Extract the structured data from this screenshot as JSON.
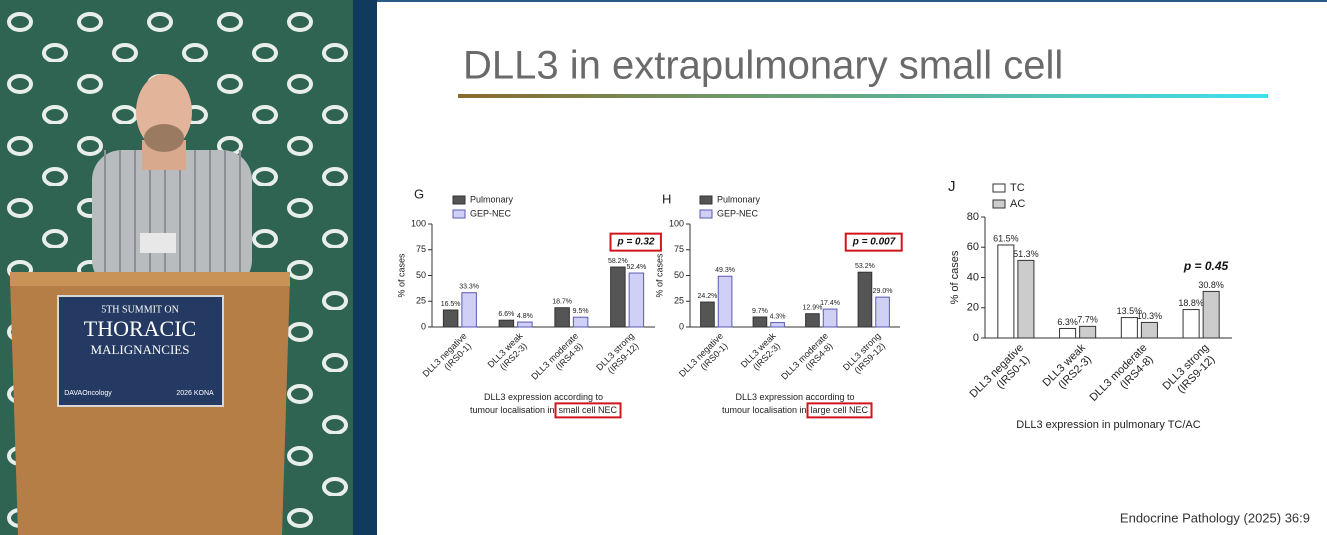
{
  "slide": {
    "title": "DLL3 in extrapulmonary small cell",
    "citation": "Endocrine Pathology (2025) 36:9"
  },
  "podium": {
    "line1": "5TH SUMMIT ON",
    "line2": "THORACIC",
    "line3": "MALIGNANCIES",
    "logo": "DAVAOncology",
    "badge": "2026 KONA"
  },
  "chart_data": [
    {
      "type": "bar",
      "panel": "G",
      "y_label": "% of cases",
      "categories": [
        [
          "DLL3 negative",
          "(IRS0-1)"
        ],
        [
          "DLL3 weak",
          "(IRS2-3)"
        ],
        [
          "DLL3 moderate",
          "(IRS4-8)"
        ],
        [
          "DLL3 strong",
          "(IRS9-12)"
        ]
      ],
      "series": [
        {
          "name": "Pulmonary",
          "color": "#555555",
          "stroke": "#333333",
          "values": [
            16.5,
            6.6,
            18.7,
            58.2
          ],
          "value_labels": [
            "16.5%",
            "6.6%",
            "18.7%",
            "58.2%"
          ]
        },
        {
          "name": "GEP-NEC",
          "color": "#d0d0f7",
          "stroke": "#5a5ab0",
          "values": [
            33.3,
            4.8,
            9.5,
            52.4
          ],
          "value_labels": [
            "33.3%",
            "4.8%",
            "9.5%",
            "52.4%"
          ]
        }
      ],
      "ylim": [
        0,
        100
      ],
      "yticks": [
        0,
        25,
        50,
        75,
        100
      ],
      "x_label": [
        "DLL3 expression according to",
        "tumour localisation in"
      ],
      "x_label_highlight": "small cell NEC",
      "annotation": "p = 0.32",
      "annotation_boxed": true
    },
    {
      "type": "bar",
      "panel": "H",
      "y_label": "% of cases",
      "categories": [
        [
          "DLL3 negative",
          "(IRS0-1)"
        ],
        [
          "DLL3 weak",
          "(IRS2-3)"
        ],
        [
          "DLL3 moderate",
          "(IRS4-8)"
        ],
        [
          "DLL3 strong",
          "(IRS9-12)"
        ]
      ],
      "series": [
        {
          "name": "Pulmonary",
          "color": "#555555",
          "stroke": "#333333",
          "values": [
            24.2,
            9.7,
            12.9,
            53.2
          ],
          "value_labels": [
            "24.2%",
            "9.7%",
            "12.9%",
            "53.2%"
          ]
        },
        {
          "name": "GEP-NEC",
          "color": "#d0d0f7",
          "stroke": "#5a5ab0",
          "values": [
            49.3,
            4.3,
            17.4,
            29.0
          ],
          "value_labels": [
            "49.3%",
            "4.3%",
            "17.4%",
            "29.0%"
          ]
        }
      ],
      "ylim": [
        0,
        100
      ],
      "yticks": [
        0,
        25,
        50,
        75,
        100
      ],
      "x_label": [
        "DLL3 expression according to",
        "tumour localisation in"
      ],
      "x_label_highlight": "large cell NEC",
      "annotation": "p = 0.007",
      "annotation_boxed": true
    },
    {
      "type": "bar",
      "panel": "J",
      "y_label": "% of cases",
      "categories": [
        [
          "DLL3 negative",
          "(IRS0-1)"
        ],
        [
          "DLL3 weak",
          "(IRS2-3)"
        ],
        [
          "DLL3 moderate",
          "(IRS4-8)"
        ],
        [
          "DLL3 strong",
          "(IRS9-12)"
        ]
      ],
      "series": [
        {
          "name": "TC",
          "color": "#ffffff",
          "stroke": "#333333",
          "values": [
            61.5,
            6.3,
            13.5,
            18.8
          ],
          "value_labels": [
            "61.5%",
            "6.3%",
            "13.5%",
            "18.8%"
          ]
        },
        {
          "name": "AC",
          "color": "#cccccc",
          "stroke": "#333333",
          "values": [
            51.3,
            7.7,
            10.3,
            30.8
          ],
          "value_labels": [
            "51.3%",
            "7.7%",
            "10.3%",
            "30.8%"
          ]
        }
      ],
      "ylim": [
        0,
        80
      ],
      "yticks": [
        0,
        20,
        40,
        60,
        80
      ],
      "x_label": [
        "DLL3 expression in pulmonary TC/AC"
      ],
      "annotation": "p = 0.45",
      "annotation_boxed": false
    }
  ]
}
